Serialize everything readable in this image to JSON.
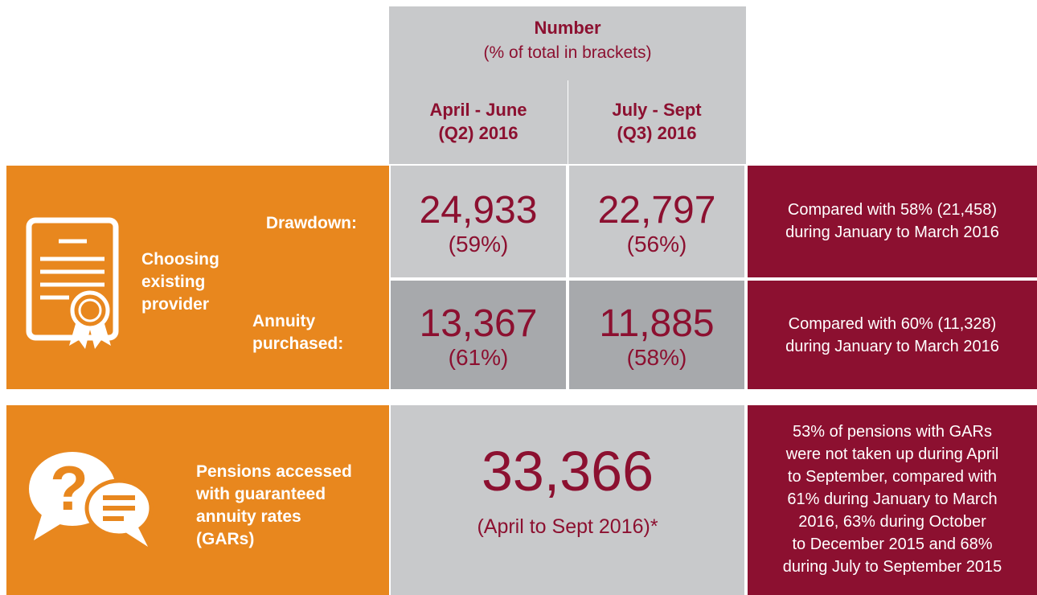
{
  "header": {
    "title": "Number",
    "subtitle": "(% of total in brackets)",
    "columns": [
      [
        "April - June",
        "(Q2) 2016"
      ],
      [
        "July - Sept",
        "(Q3) 2016"
      ]
    ]
  },
  "sections": [
    {
      "label": [
        "Choosing",
        "existing",
        "provider"
      ],
      "rows": [
        {
          "label": [
            "Drawdown:"
          ],
          "cells": [
            {
              "number": "24,933",
              "percent": "(59%)"
            },
            {
              "number": "22,797",
              "percent": "(56%)"
            }
          ],
          "note": [
            "Compared with 58% (21,458)",
            "during January to March 2016"
          ]
        },
        {
          "label": [
            "Annuity",
            "purchased:"
          ],
          "cells": [
            {
              "number": "13,367",
              "percent": "(61%)"
            },
            {
              "number": "11,885",
              "percent": "(58%)"
            }
          ],
          "note": [
            "Compared with 60% (11,328)",
            "during January to March 2016"
          ]
        }
      ]
    },
    {
      "label": [
        "Pensions accessed",
        "with guaranteed",
        "annuity rates",
        "(GARs)"
      ],
      "total": {
        "number": "33,366",
        "period": "(April to Sept 2016)*"
      },
      "note": [
        "53% of pensions with GARs",
        "were not taken up during April",
        "to September, compared with",
        "61% during January to March",
        "2016, 63% during October",
        "to December 2015 and 68%",
        "during July to September 2015"
      ]
    }
  ]
}
